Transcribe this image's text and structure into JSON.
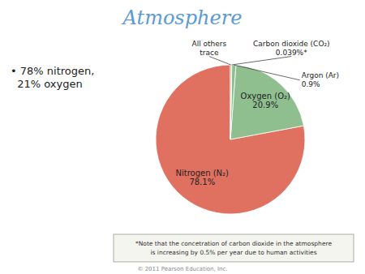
{
  "chart_data": {
    "type": "pie",
    "title": "Atmosphere",
    "categories": [
      "Nitrogen (N₂)",
      "Oxygen (O₂)",
      "Argon (Ar)",
      "Carbon dioxide (CO₂)",
      "All others"
    ],
    "values": [
      78.1,
      20.9,
      0.9,
      0.039,
      0.261
    ],
    "value_labels": [
      "78.1%",
      "20.9%",
      "0.9%",
      "0.039%*",
      "trace"
    ],
    "colors": [
      "#E07060",
      "#8FBF8F",
      "#8FBF8F",
      "#8FBF8F",
      "#8FBF8F"
    ],
    "data_labels": true,
    "annotations": [
      "• 78% nitrogen,\n  21% oxygen",
      "*Note that the concetration of carbon dioxide in the atmosphere\nis increasing by 0.5% per year due to human activities",
      "© 2011 Pearson Education, Inc."
    ]
  }
}
